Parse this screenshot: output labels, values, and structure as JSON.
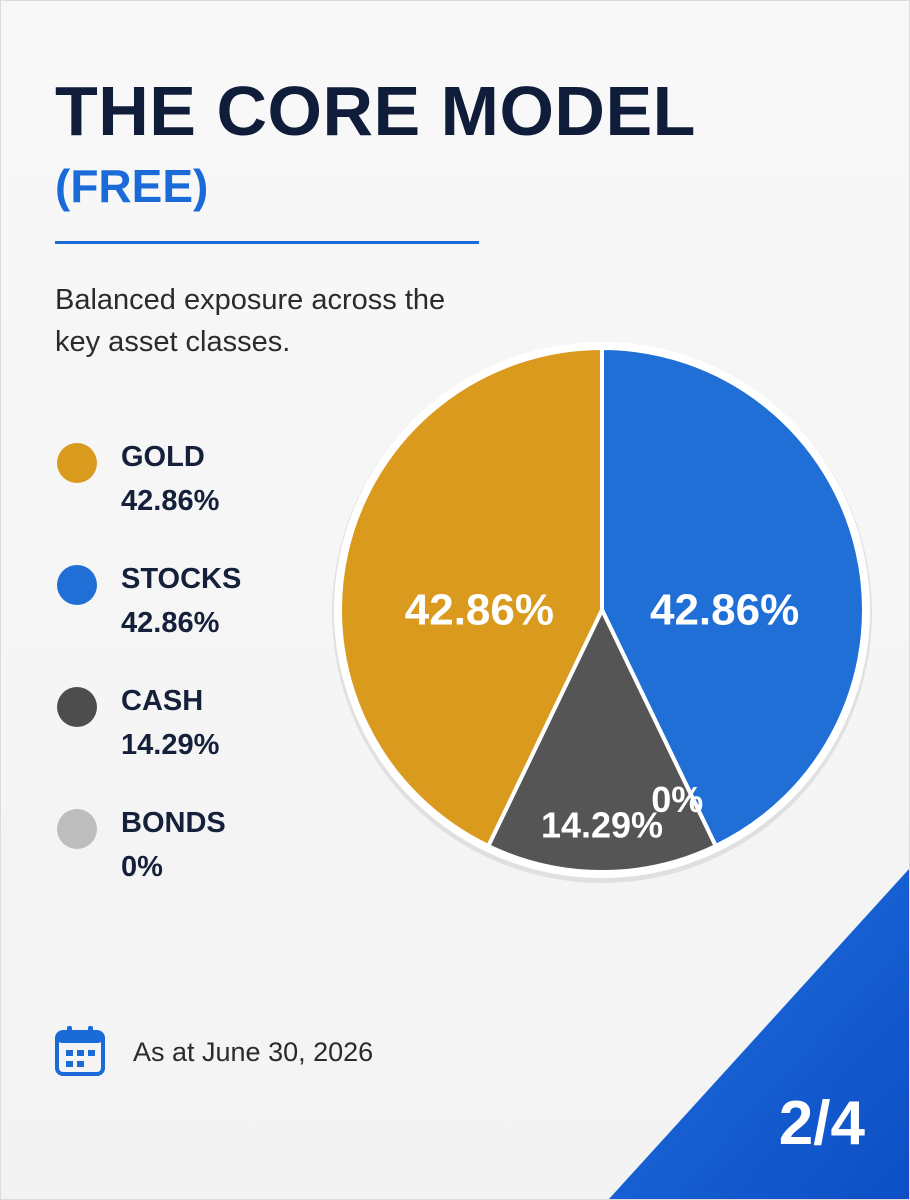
{
  "header": {
    "title": "THE CORE MODEL",
    "subtitle": "(FREE)",
    "description": "Balanced exposure across the key asset classes."
  },
  "legend": [
    {
      "name": "GOLD",
      "value": "42.86%",
      "color": "#d99a1e"
    },
    {
      "name": "STOCKS",
      "value": "42.86%",
      "color": "#1f6fd6"
    },
    {
      "name": "CASH",
      "value": "14.29%",
      "color": "#4d4d4d"
    },
    {
      "name": "BONDS",
      "value": "0%",
      "color": "#bdbdbd"
    }
  ],
  "chart_data": {
    "type": "pie",
    "categories": [
      "STOCKS",
      "BONDS",
      "CASH",
      "GOLD"
    ],
    "values": [
      42.86,
      0,
      14.29,
      42.86
    ],
    "labels": [
      "42.86%",
      "0%",
      "14.29%",
      "42.86%"
    ],
    "colors": [
      "#1f6fd6",
      "#bdbdbd",
      "#555555",
      "#d99a1e"
    ],
    "title": "",
    "start_angle": "top",
    "direction": "clockwise"
  },
  "footer": {
    "date_text": "As at June 30, 2026",
    "page_indicator": "2/4",
    "accent_color": "#1258d3"
  },
  "icons": {
    "calendar": "calendar-icon"
  }
}
